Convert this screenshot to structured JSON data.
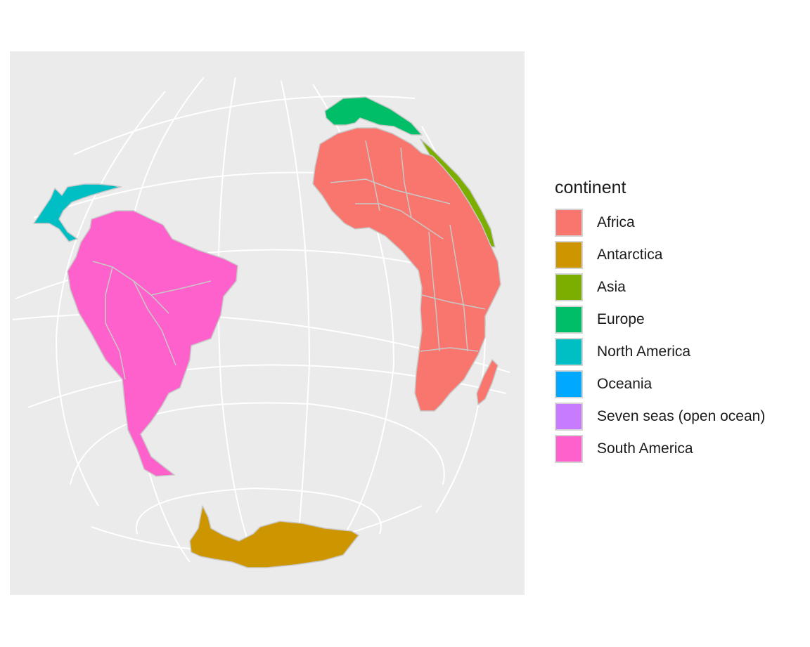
{
  "legend": {
    "title": "continent",
    "items": [
      {
        "label": "Africa",
        "color": "#F8766D"
      },
      {
        "label": "Antarctica",
        "color": "#CD9600"
      },
      {
        "label": "Asia",
        "color": "#7CAE00"
      },
      {
        "label": "Europe",
        "color": "#00BE67"
      },
      {
        "label": "North America",
        "color": "#00BFC4"
      },
      {
        "label": "Oceania",
        "color": "#00A9FF"
      },
      {
        "label": "Seven seas (open ocean)",
        "color": "#C77CFF"
      },
      {
        "label": "South America",
        "color": "#FF61CC"
      }
    ]
  },
  "map": {
    "projection": "orthographic globe",
    "panel_background": "#EBEBEB",
    "graticule_color": "#FFFFFF",
    "border_color": "#C8C8C8",
    "visible_continents": [
      "Africa",
      "Antarctica",
      "Asia",
      "Europe",
      "North America",
      "South America"
    ]
  }
}
